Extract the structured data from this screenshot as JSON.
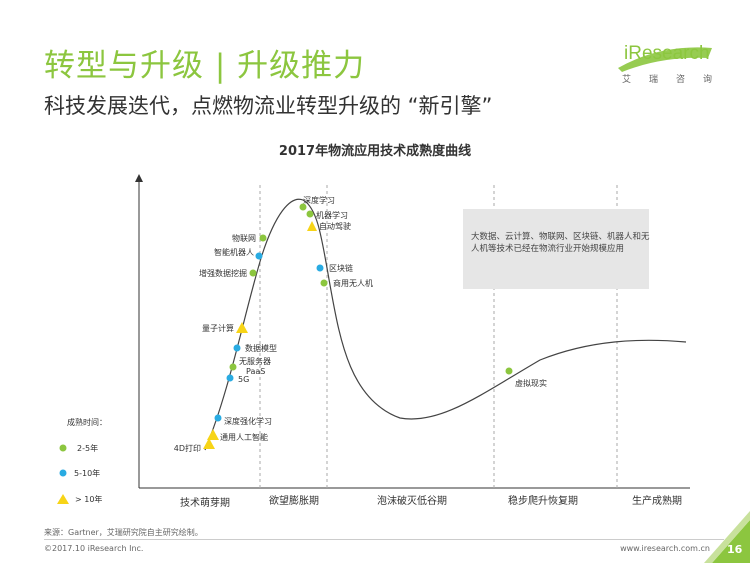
{
  "header": {
    "title": "转型与升级 | 升级推力",
    "subtitle": "科技发展迭代，点燃物流业转型升级的 “新引擎”"
  },
  "logo": {
    "brand": "iResearch",
    "tagline": [
      "艾",
      "瑞",
      "咨",
      "询"
    ],
    "color": "#8cc63f"
  },
  "chart_data": {
    "type": "line",
    "title": "2017年物流应用技术成熟度曲线",
    "phases": [
      "技术萌芽期",
      "欲望膨胀期",
      "泡沫破灭低谷期",
      "稳步爬升恢复期",
      "生产成熟期"
    ],
    "legend": {
      "title": "成熟时间：",
      "items": [
        {
          "label": "2-5年",
          "marker": "circle",
          "color": "#8cc63f"
        },
        {
          "label": "5-10年",
          "marker": "circle",
          "color": "#29abe2"
        },
        {
          "label": "> 10年",
          "marker": "triangle",
          "color": "#f7d417"
        }
      ]
    },
    "points": [
      {
        "label": "深度学习",
        "group": "2-5年"
      },
      {
        "label": "机器学习",
        "group": "2-5年"
      },
      {
        "label": "自动驾驶",
        "group": "> 10年"
      },
      {
        "label": "物联网",
        "group": "2-5年"
      },
      {
        "label": "智能机器人",
        "group": "5-10年"
      },
      {
        "label": "增强数据挖掘",
        "group": "2-5年"
      },
      {
        "label": "区块链",
        "group": "5-10年"
      },
      {
        "label": "商用无人机",
        "group": "2-5年"
      },
      {
        "label": "量子计算",
        "group": "> 10年"
      },
      {
        "label": "数据模型",
        "group": "5-10年"
      },
      {
        "label": "无服务器",
        "group": "2-5年"
      },
      {
        "label": "PaaS",
        "group": "2-5年"
      },
      {
        "label": "5G",
        "group": "5-10年"
      },
      {
        "label": "深度强化学习",
        "group": "5-10年"
      },
      {
        "label": "通用人工智能",
        "group": "> 10年"
      },
      {
        "label": "4D打印",
        "group": "> 10年"
      },
      {
        "label": "虚拟现实",
        "group": "2-5年"
      }
    ],
    "annotation": "大数据、云计算、物联网、区块链、机器人和无人机等技术已经在物流行业开始规模应用",
    "axis_color": "#333333",
    "divider_style": "dashed"
  },
  "footer": {
    "source": "来源：Gartner，艾瑞研究院自主研究绘制。",
    "copyright": "©2017.10 iResearch Inc.",
    "website": "www.iresearch.com.cn",
    "page": "16",
    "accent": "#8cc63f"
  }
}
